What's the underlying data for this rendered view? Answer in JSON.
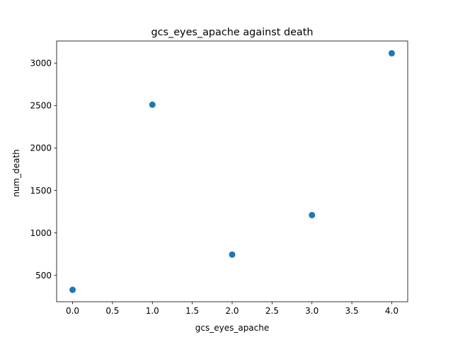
{
  "chart_data": {
    "type": "scatter",
    "title": "gcs_eyes_apache against death",
    "xlabel": "gcs_eyes_apache",
    "ylabel": "num_death",
    "x": [
      0,
      1,
      2,
      3,
      4
    ],
    "y": [
      330,
      2510,
      745,
      1210,
      3115
    ],
    "xlim": [
      -0.2,
      4.2
    ],
    "ylim": [
      190,
      3260
    ],
    "xticks": [
      0.0,
      0.5,
      1.0,
      1.5,
      2.0,
      2.5,
      3.0,
      3.5,
      4.0
    ],
    "xtick_labels": [
      "0.0",
      "0.5",
      "1.0",
      "1.5",
      "2.0",
      "2.5",
      "3.0",
      "3.5",
      "4.0"
    ],
    "yticks": [
      500,
      1000,
      1500,
      2000,
      2500,
      3000
    ],
    "ytick_labels": [
      "500",
      "1000",
      "1500",
      "2000",
      "2500",
      "3000"
    ],
    "grid": false,
    "legend": false,
    "colors": {
      "marker": "#1f77b4",
      "axes": "#000000",
      "background": "#ffffff"
    }
  }
}
